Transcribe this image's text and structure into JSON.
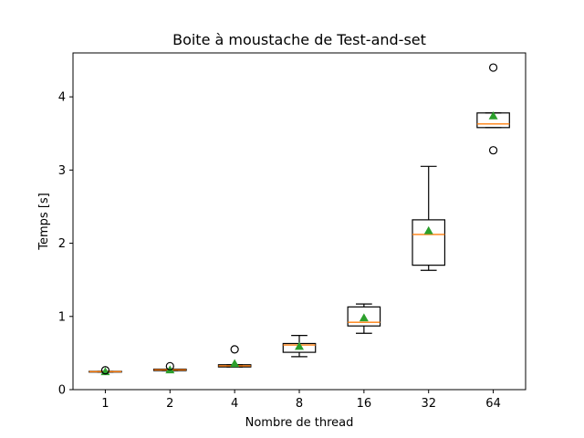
{
  "chart_data": {
    "type": "boxplot",
    "title": "Boite à moustache de Test-and-set",
    "xlabel": "Nombre de thread",
    "ylabel": "Temps [s]",
    "categories": [
      "1",
      "2",
      "4",
      "8",
      "16",
      "32",
      "64"
    ],
    "ylim": [
      0,
      4.6
    ],
    "yticks": [
      0,
      1,
      2,
      3,
      4
    ],
    "grid": false,
    "colors": {
      "box": "#000000",
      "median": "#ff7f0e",
      "mean": "#2ca02c",
      "outlier": "#000000"
    },
    "boxes": [
      {
        "category": "1",
        "whisker_low": 0.24,
        "q1": 0.24,
        "median": 0.245,
        "q3": 0.25,
        "whisker_high": 0.25,
        "mean": 0.245,
        "outliers": [
          0.265
        ]
      },
      {
        "category": "2",
        "whisker_low": 0.26,
        "q1": 0.26,
        "median": 0.27,
        "q3": 0.28,
        "whisker_high": 0.28,
        "mean": 0.27,
        "outliers": [
          0.32
        ]
      },
      {
        "category": "4",
        "whisker_low": 0.31,
        "q1": 0.31,
        "median": 0.325,
        "q3": 0.34,
        "whisker_high": 0.34,
        "mean": 0.355,
        "outliers": [
          0.55
        ]
      },
      {
        "category": "8",
        "whisker_low": 0.45,
        "q1": 0.51,
        "median": 0.61,
        "q3": 0.63,
        "whisker_high": 0.74,
        "mean": 0.59,
        "outliers": []
      },
      {
        "category": "16",
        "whisker_low": 0.77,
        "q1": 0.87,
        "median": 0.92,
        "q3": 1.13,
        "whisker_high": 1.17,
        "mean": 0.98,
        "outliers": []
      },
      {
        "category": "32",
        "whisker_low": 1.63,
        "q1": 1.7,
        "median": 2.12,
        "q3": 2.32,
        "whisker_high": 3.05,
        "mean": 2.17,
        "outliers": []
      },
      {
        "category": "64",
        "whisker_low": 3.58,
        "q1": 3.58,
        "median": 3.63,
        "q3": 3.78,
        "whisker_high": 3.78,
        "mean": 3.74,
        "outliers": [
          3.27,
          4.4
        ]
      }
    ]
  }
}
